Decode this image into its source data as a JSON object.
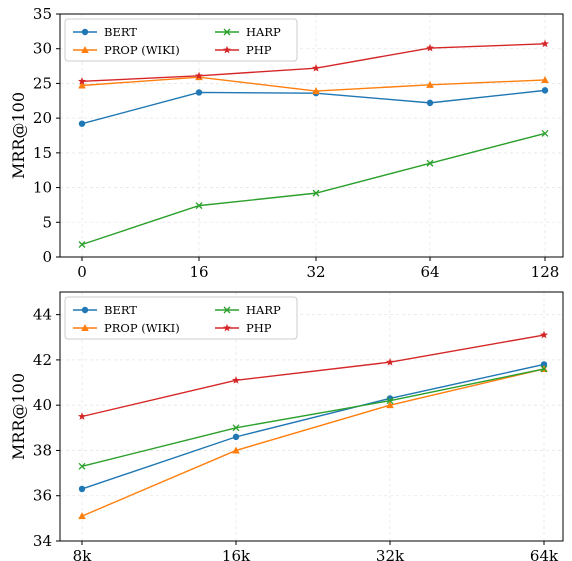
{
  "chart_data": [
    {
      "type": "line",
      "x": [
        "0",
        "16",
        "32",
        "64",
        "128"
      ],
      "xlabel": "",
      "ylabel": "MRR@100",
      "ylim": [
        0,
        35
      ],
      "yticks": [
        0,
        5,
        10,
        15,
        20,
        25,
        30,
        35
      ],
      "grid": true,
      "legend_position": "top-left",
      "series": [
        {
          "name": "BERT",
          "color": "#1f77b4",
          "marker": "circle",
          "values": [
            19.2,
            23.7,
            23.6,
            22.2,
            24.0
          ]
        },
        {
          "name": "PROP (WIKI)",
          "color": "#ff7f0e",
          "marker": "triangle",
          "values": [
            24.7,
            25.9,
            23.9,
            24.8,
            25.5
          ]
        },
        {
          "name": "HARP",
          "color": "#2ca02c",
          "marker": "x",
          "values": [
            1.8,
            7.4,
            9.2,
            13.5,
            17.8
          ]
        },
        {
          "name": "PHP",
          "color": "#d62728",
          "marker": "star",
          "values": [
            25.3,
            26.1,
            27.2,
            30.1,
            30.7
          ]
        }
      ]
    },
    {
      "type": "line",
      "x": [
        "8k",
        "16k",
        "32k",
        "64k"
      ],
      "xlabel": "",
      "ylabel": "MRR@100",
      "ylim": [
        34,
        45
      ],
      "yticks": [
        34,
        36,
        38,
        40,
        42,
        44
      ],
      "grid": true,
      "legend_position": "top-left",
      "series": [
        {
          "name": "BERT",
          "color": "#1f77b4",
          "marker": "circle",
          "values": [
            36.3,
            38.6,
            40.3,
            41.8
          ]
        },
        {
          "name": "PROP (WIKI)",
          "color": "#ff7f0e",
          "marker": "triangle",
          "values": [
            35.1,
            38.0,
            40.0,
            41.6
          ]
        },
        {
          "name": "HARP",
          "color": "#2ca02c",
          "marker": "x",
          "values": [
            37.3,
            39.0,
            40.2,
            41.6
          ]
        },
        {
          "name": "PHP",
          "color": "#d62728",
          "marker": "star",
          "values": [
            39.5,
            41.1,
            41.9,
            43.1
          ]
        }
      ]
    }
  ]
}
